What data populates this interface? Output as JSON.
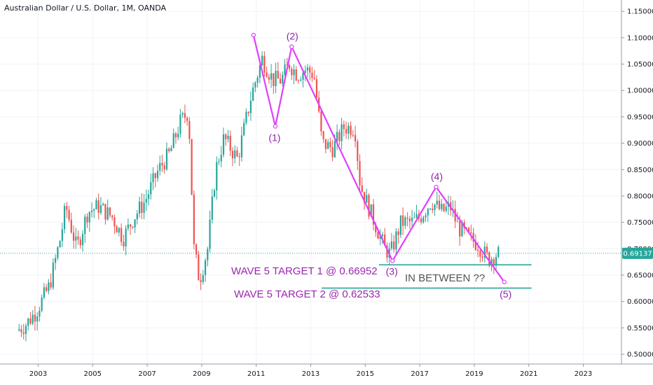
{
  "header": {
    "title": "Australian Dollar / U.S. Dollar, 1M, OANDA"
  },
  "colors": {
    "up_candle": "#26a69a",
    "down_candle": "#ef5350",
    "wave_line": "#e040fb",
    "target_line": "#26a69a",
    "current_price": "#26a69a",
    "grid": "#f0f3fa"
  },
  "chart_data": {
    "type": "candlestick",
    "instrument": "Australian Dollar / U.S. Dollar",
    "timeframe": "1M",
    "source": "OANDA",
    "x_ticks": [
      "2003",
      "2005",
      "2007",
      "2009",
      "2011",
      "2013",
      "2015",
      "2017",
      "2019",
      "2021",
      "2023"
    ],
    "y_ticks": [
      "0.50000",
      "0.55000",
      "0.60000",
      "0.65000",
      "0.70000",
      "0.75000",
      "0.80000",
      "0.85000",
      "0.90000",
      "0.95000",
      "1.00000",
      "1.05000",
      "1.10000",
      "1.15000"
    ],
    "xlim": [
      2001.6,
      2024.4
    ],
    "ylim": [
      0.4815,
      1.1715
    ],
    "current_price": "0.69137",
    "price_path": [
      [
        2002.3,
        0.545
      ],
      [
        2002.6,
        0.555
      ],
      [
        2003.0,
        0.58
      ],
      [
        2003.5,
        0.63
      ],
      [
        2003.9,
        0.72
      ],
      [
        2004.1,
        0.78
      ],
      [
        2004.5,
        0.7
      ],
      [
        2004.9,
        0.77
      ],
      [
        2005.3,
        0.78
      ],
      [
        2005.8,
        0.76
      ],
      [
        2006.2,
        0.72
      ],
      [
        2006.6,
        0.76
      ],
      [
        2007.0,
        0.79
      ],
      [
        2007.5,
        0.85
      ],
      [
        2007.9,
        0.88
      ],
      [
        2008.3,
        0.94
      ],
      [
        2008.6,
        0.96
      ],
      [
        2008.8,
        0.7
      ],
      [
        2009.0,
        0.64
      ],
      [
        2009.3,
        0.7
      ],
      [
        2009.6,
        0.85
      ],
      [
        2009.9,
        0.91
      ],
      [
        2010.4,
        0.87
      ],
      [
        2010.9,
        0.99
      ],
      [
        2011.3,
        1.06
      ],
      [
        2011.7,
        1.02
      ],
      [
        2012.0,
        1.02
      ],
      [
        2012.3,
        1.05
      ],
      [
        2012.6,
        1.03
      ],
      [
        2012.9,
        1.04
      ],
      [
        2013.2,
        1.03
      ],
      [
        2013.5,
        0.9
      ],
      [
        2013.9,
        0.89
      ],
      [
        2014.3,
        0.93
      ],
      [
        2014.7,
        0.93
      ],
      [
        2014.9,
        0.82
      ],
      [
        2015.2,
        0.78
      ],
      [
        2015.5,
        0.74
      ],
      [
        2015.8,
        0.7
      ],
      [
        2016.0,
        0.69
      ],
      [
        2016.4,
        0.75
      ],
      [
        2016.8,
        0.75
      ],
      [
        2017.1,
        0.76
      ],
      [
        2017.5,
        0.79
      ],
      [
        2017.9,
        0.77
      ],
      [
        2018.2,
        0.78
      ],
      [
        2018.5,
        0.74
      ],
      [
        2018.9,
        0.72
      ],
      [
        2019.2,
        0.71
      ],
      [
        2019.6,
        0.68
      ],
      [
        2019.9,
        0.69
      ]
    ],
    "wave_points": [
      {
        "label": "",
        "x": 2010.9,
        "y": 1.105
      },
      {
        "label": "(1)",
        "x": 2011.7,
        "y": 0.932
      },
      {
        "label": "(2)",
        "x": 2012.3,
        "y": 1.083
      },
      {
        "label": "(3)",
        "x": 2016.0,
        "y": 0.677
      },
      {
        "label": "(4)",
        "x": 2017.6,
        "y": 0.817
      },
      {
        "label": "(5)",
        "x": 2020.1,
        "y": 0.637
      }
    ],
    "targets": [
      {
        "label": "WAVE 5 TARGET 1 @ 0.66952",
        "value": 0.66952,
        "x_start": 2015.5,
        "x_end": 2021.1
      },
      {
        "label": "WAVE 5 TARGET 2 @ 0.62533",
        "value": 0.62533,
        "x_start": 2013.4,
        "x_end": 2021.1
      }
    ],
    "annotation": "IN BETWEEN ??"
  }
}
